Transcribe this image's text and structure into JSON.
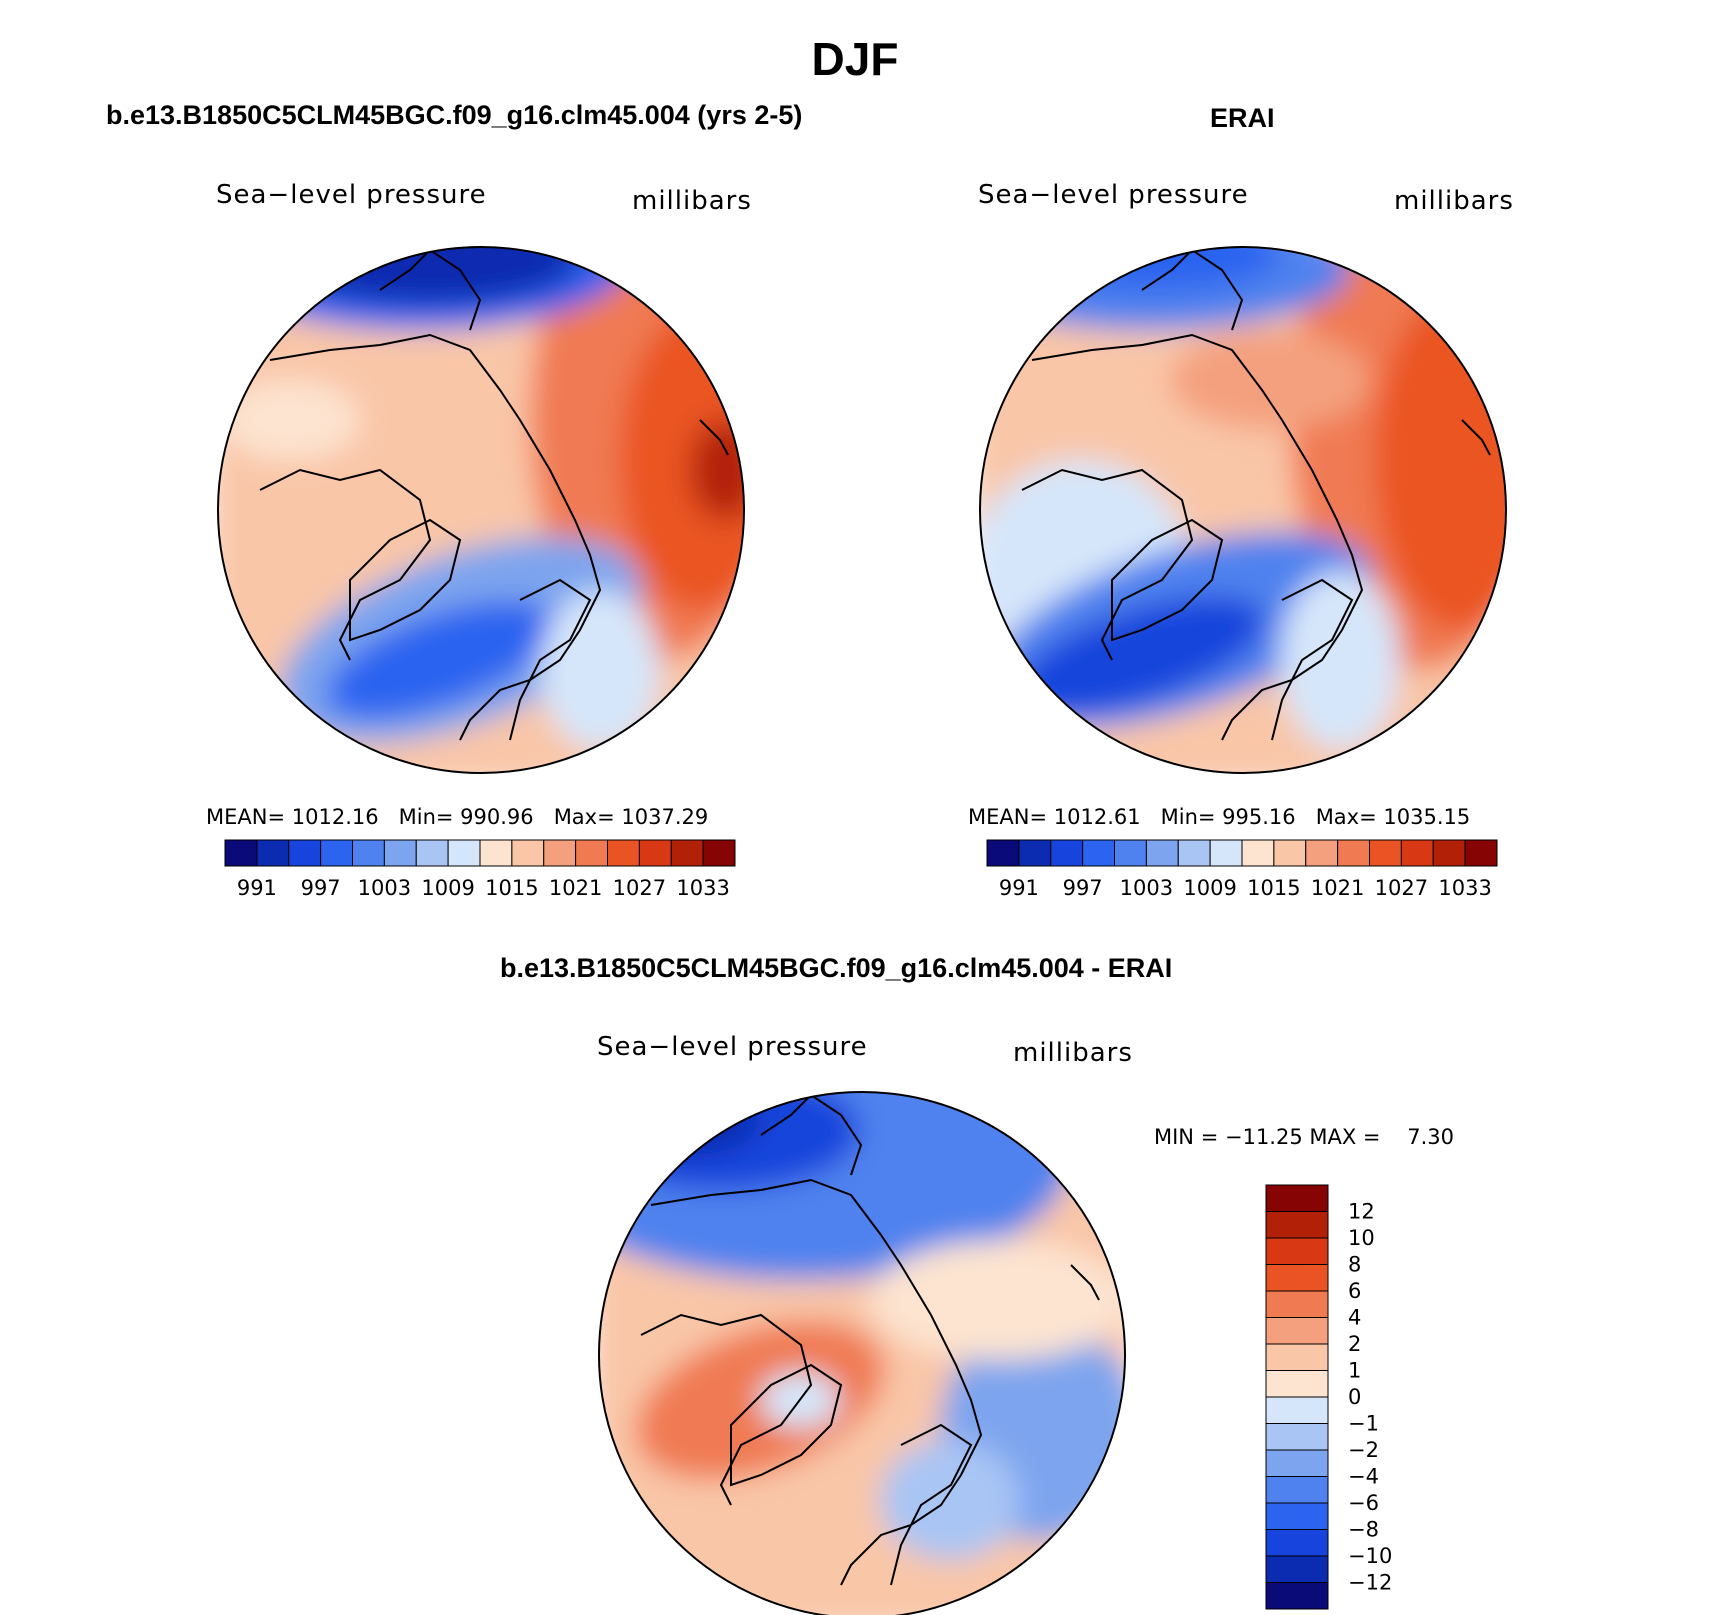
{
  "title": "DJF",
  "panels": [
    {
      "run_title": "b.e13.B1850C5CLM45BGC.f09_g16.clm45.004 (yrs 2-5)",
      "variable_label": "Sea−level pressure",
      "units_label": "millibars",
      "mean": "1012.16",
      "min": "990.96",
      "max": "1037.29"
    },
    {
      "run_title": "ERAI",
      "variable_label": "Sea−level pressure",
      "units_label": "millibars",
      "mean": "1012.61",
      "min": "995.16",
      "max": "1035.15"
    }
  ],
  "stat_labels": {
    "mean": "MEAN=",
    "min": "Min=",
    "max": "Max="
  },
  "difference": {
    "run_title": "b.e13.B1850C5CLM45BGC.f09_g16.clm45.004 - ERAI",
    "variable_label": "Sea−level pressure",
    "units_label": "millibars",
    "min_label": "MIN =",
    "min": "−11.25",
    "max_label": "MAX =",
    "max": "7.30"
  },
  "chart_data": [
    {
      "type": "heatmap",
      "projection": "north-polar-stereographic",
      "title": "b.e13.B1850C5CLM45BGC.f09_g16.clm45.004 (yrs 2-5)",
      "variable": "Sea-level pressure",
      "units": "millibars",
      "colorbar_levels": [
        "991",
        "994",
        "997",
        "1000",
        "1003",
        "1006",
        "1009",
        "1012",
        "1015",
        "1018",
        "1021",
        "1024",
        "1027",
        "1030",
        "1033"
      ],
      "colorbar_tick_labels": [
        "991",
        "997",
        "1003",
        "1009",
        "1015",
        "1021",
        "1027",
        "1033"
      ],
      "colors": [
        "#0a0a78",
        "#0b2bb0",
        "#1744dc",
        "#2c64f0",
        "#4f82ee",
        "#7da4ee",
        "#a9c5f4",
        "#d6e6fa",
        "#fde4d0",
        "#f9c6a8",
        "#f4a07e",
        "#f07a52",
        "#ea5424",
        "#d83814",
        "#b32008",
        "#860404"
      ],
      "stats": {
        "mean": 1012.16,
        "min": 990.96,
        "max": 1037.29
      }
    },
    {
      "type": "heatmap",
      "projection": "north-polar-stereographic",
      "title": "ERAI",
      "variable": "Sea-level pressure",
      "units": "millibars",
      "colorbar_levels": [
        "991",
        "994",
        "997",
        "1000",
        "1003",
        "1006",
        "1009",
        "1012",
        "1015",
        "1018",
        "1021",
        "1024",
        "1027",
        "1030",
        "1033"
      ],
      "colorbar_tick_labels": [
        "991",
        "997",
        "1003",
        "1009",
        "1015",
        "1021",
        "1027",
        "1033"
      ],
      "colors": [
        "#0a0a78",
        "#0b2bb0",
        "#1744dc",
        "#2c64f0",
        "#4f82ee",
        "#7da4ee",
        "#a9c5f4",
        "#d6e6fa",
        "#fde4d0",
        "#f9c6a8",
        "#f4a07e",
        "#f07a52",
        "#ea5424",
        "#d83814",
        "#b32008",
        "#860404"
      ],
      "stats": {
        "mean": 1012.61,
        "min": 995.16,
        "max": 1035.15
      }
    },
    {
      "type": "heatmap",
      "projection": "north-polar-stereographic",
      "title": "b.e13.B1850C5CLM45BGC.f09_g16.clm45.004 - ERAI",
      "variable": "Sea-level pressure",
      "units": "millibars",
      "colorbar_orientation": "vertical",
      "colorbar_tick_labels_top_to_bottom": [
        "12",
        "10",
        "8",
        "6",
        "4",
        "2",
        "1",
        "0",
        "−1",
        "−2",
        "−4",
        "−6",
        "−8",
        "−10",
        "−12"
      ],
      "colors_top_to_bottom": [
        "#860404",
        "#b32008",
        "#d83814",
        "#ea5424",
        "#f07a52",
        "#f4a07e",
        "#f9c6a8",
        "#fde4d0",
        "#d6e6fa",
        "#a9c5f4",
        "#7da4ee",
        "#4f82ee",
        "#2c64f0",
        "#1744dc",
        "#0b2bb0",
        "#0a0a78"
      ],
      "stats": {
        "min": -11.25,
        "max": 7.3
      }
    }
  ]
}
